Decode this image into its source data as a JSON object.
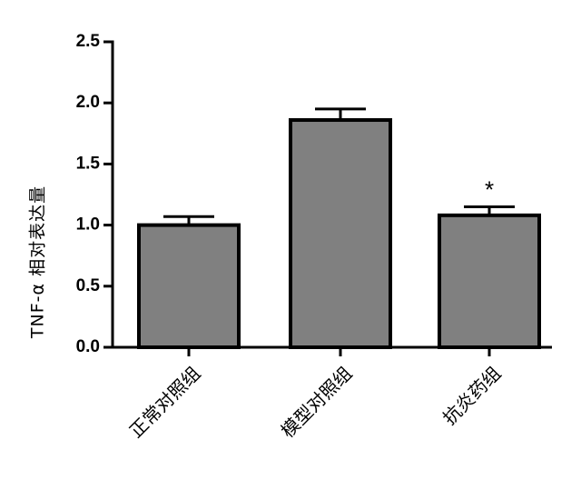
{
  "chart_data": {
    "type": "bar",
    "categories": [
      "正常对照组",
      "模型对照组",
      "抗炎药组"
    ],
    "values": [
      1.0,
      1.86,
      1.08
    ],
    "errors": [
      0.07,
      0.09,
      0.07
    ],
    "annotations": [
      "",
      "",
      "*"
    ],
    "ylabel": "TNF-α 相对表达量",
    "xlabel": "",
    "title": "",
    "ylim": [
      0,
      2.5
    ],
    "yticks": [
      "0.0",
      "0.5",
      "1.0",
      "1.5",
      "2.0",
      "2.5"
    ],
    "grid": false,
    "bar_color": "#808080",
    "edge_color": "#000000"
  }
}
